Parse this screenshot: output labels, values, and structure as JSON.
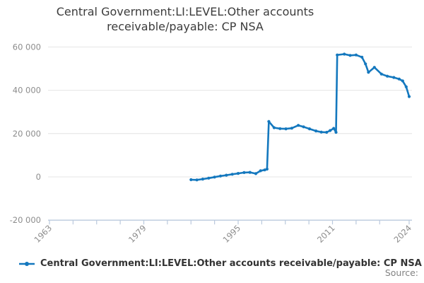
{
  "title": "Central Government:LI:LEVEL:Other accounts receivable/payable: CP NSA",
  "legend": {
    "label": "Central Government:LI:LEVEL:Other accounts receivable/payable: CP NSA",
    "line_color": "#1478be"
  },
  "source_label": "Source:",
  "colors": {
    "grid": "#e4e4e4",
    "axis": "#bac9dd",
    "tick_label": "#8c8c8c",
    "title": "#3c3c3c",
    "legend_text": "#333333",
    "source": "#828282"
  },
  "chart_data": {
    "type": "line",
    "title": "Central Government:LI:LEVEL:Other accounts receivable/payable: CP NSA",
    "xlabel": "",
    "ylabel": "",
    "xlim": [
      1962.8,
      2024.5
    ],
    "ylim": [
      -20000,
      60000
    ],
    "grid": "horizontal",
    "legend_position": "bottom-left",
    "y_ticks": [
      -20000,
      0,
      20000,
      40000,
      60000
    ],
    "y_tick_labels": [
      "-20 000",
      "0",
      "20 000",
      "40 000",
      "60 000"
    ],
    "x_ticks_labeled": [
      1963,
      1979,
      1995,
      2011,
      2024
    ],
    "x_ticks_minor": [
      1963,
      1967,
      1971,
      1975,
      1979,
      1983,
      1987,
      1991,
      1995,
      1999,
      2003,
      2007,
      2011,
      2015,
      2019,
      2024
    ],
    "series": [
      {
        "name": "Central Government:LI:LEVEL:Other accounts receivable/payable: CP NSA",
        "color": "#1478be",
        "points": [
          [
            1987.0,
            -1300
          ],
          [
            1988.0,
            -1400
          ],
          [
            1989.0,
            -1000
          ],
          [
            1990.0,
            -600
          ],
          [
            1991.0,
            -100
          ],
          [
            1992.0,
            400
          ],
          [
            1993.0,
            800
          ],
          [
            1994.0,
            1200
          ],
          [
            1995.0,
            1600
          ],
          [
            1996.0,
            2000
          ],
          [
            1997.0,
            2100
          ],
          [
            1998.0,
            1500
          ],
          [
            1998.8,
            2800
          ],
          [
            1999.5,
            3200
          ],
          [
            1999.9,
            3600
          ],
          [
            2000.2,
            25600
          ],
          [
            2001.1,
            22700
          ],
          [
            2002.1,
            22300
          ],
          [
            2003.1,
            22200
          ],
          [
            2004.1,
            22500
          ],
          [
            2005.2,
            23800
          ],
          [
            2006.1,
            23100
          ],
          [
            2007.1,
            22200
          ],
          [
            2008.2,
            21200
          ],
          [
            2009.1,
            20700
          ],
          [
            2010.0,
            20600
          ],
          [
            2010.6,
            21400
          ],
          [
            2011.2,
            22400
          ],
          [
            2011.6,
            20600
          ],
          [
            2011.8,
            56300
          ],
          [
            2013.0,
            56700
          ],
          [
            2014.0,
            56100
          ],
          [
            2015.0,
            56300
          ],
          [
            2016.0,
            55300
          ],
          [
            2016.6,
            52200
          ],
          [
            2017.1,
            48300
          ],
          [
            2018.1,
            50600
          ],
          [
            2019.3,
            47500
          ],
          [
            2020.3,
            46500
          ],
          [
            2021.4,
            45900
          ],
          [
            2022.3,
            45200
          ],
          [
            2022.9,
            44300
          ],
          [
            2023.5,
            41600
          ],
          [
            2024.0,
            37100
          ]
        ]
      }
    ]
  }
}
